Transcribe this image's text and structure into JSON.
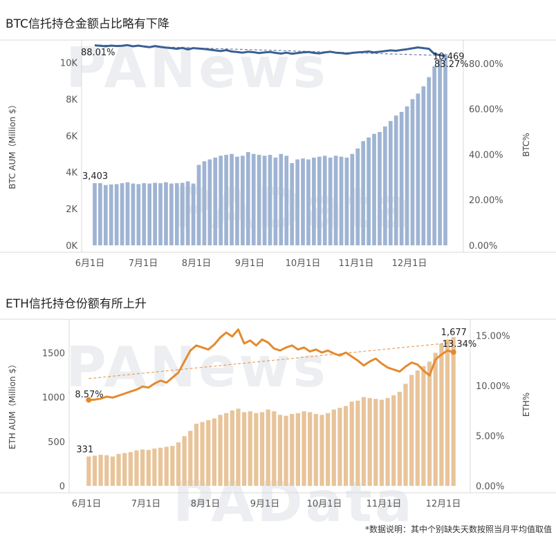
{
  "watermarks": [
    "PANews",
    "PAData",
    "PANews",
    "PAData"
  ],
  "footnote": "*数据说明：其中个别缺失天数按照当月平均值取值",
  "colors": {
    "btc_bar": "#9fb4d3",
    "btc_line": "#3b5f94",
    "eth_bar": "#e8c49a",
    "eth_line": "#e38a2e",
    "axis": "#999999",
    "grid": "#d9d9d9"
  },
  "chart_data": [
    {
      "id": "btc",
      "type": "bar+line",
      "title": "BTC信托持仓金额占比略有下降",
      "ylabel": "BTC AUM（Million $）",
      "y2label": "BTC%",
      "ylim": [
        0,
        11000
      ],
      "y2lim": [
        0,
        88.5
      ],
      "yticks": [
        {
          "v": 0,
          "t": "0K"
        },
        {
          "v": 2000,
          "t": "2K"
        },
        {
          "v": 4000,
          "t": "4K"
        },
        {
          "v": 6000,
          "t": "6K"
        },
        {
          "v": 8000,
          "t": "8K"
        },
        {
          "v": 10000,
          "t": "10K"
        }
      ],
      "y2ticks": [
        {
          "v": 0,
          "t": "0.00%"
        },
        {
          "v": 20,
          "t": "20.00%"
        },
        {
          "v": 40,
          "t": "40.00%"
        },
        {
          "v": 60,
          "t": "60.00%"
        },
        {
          "v": 80,
          "t": "80.00%"
        }
      ],
      "xticks": [
        "6月1日",
        "7月1日",
        "8月1日",
        "9月1日",
        "10月1日",
        "11月1日",
        "12月1日"
      ],
      "bars": [
        3403,
        3400,
        3300,
        3330,
        3350,
        3400,
        3450,
        3380,
        3350,
        3400,
        3380,
        3420,
        3400,
        3450,
        3380,
        3400,
        3420,
        3500,
        3380,
        4400,
        4600,
        4700,
        4800,
        4900,
        4950,
        5000,
        4850,
        4900,
        5100,
        5000,
        4950,
        4900,
        4950,
        4800,
        5000,
        4900,
        4500,
        4700,
        4750,
        4700,
        4800,
        4850,
        4900,
        4800,
        4900,
        4850,
        4800,
        5000,
        5300,
        5700,
        5900,
        6100,
        6200,
        6500,
        6800,
        7100,
        7300,
        7600,
        8000,
        8300,
        8700,
        9200,
        9800,
        10200,
        10469
      ],
      "pct": [
        88.01,
        87.8,
        87.6,
        87.9,
        87.7,
        87.8,
        88.1,
        87.6,
        87.9,
        87.5,
        87.2,
        87.7,
        87.3,
        87.0,
        86.8,
        86.5,
        86.9,
        86.2,
        86.8,
        86.6,
        86.4,
        86.1,
        85.8,
        85.5,
        85.9,
        85.3,
        85.1,
        84.8,
        85.2,
        85.0,
        84.6,
        84.9,
        85.1,
        84.7,
        84.4,
        84.8,
        84.3,
        84.6,
        84.9,
        85.1,
        84.7,
        84.5,
        84.9,
        85.2,
        84.8,
        84.6,
        84.3,
        84.7,
        84.9,
        85.1,
        85.3,
        84.9,
        85.2,
        85.5,
        85.8,
        85.6,
        86.0,
        86.3,
        86.7,
        87.1,
        86.8,
        86.5,
        84.2,
        83.7,
        83.27
      ],
      "trend": [
        88.2,
        83.5
      ],
      "labels": {
        "first_value": "3,403",
        "last_value": "10,469",
        "first_pct": "88.01%",
        "last_pct": "83.27%"
      }
    },
    {
      "id": "eth",
      "type": "bar+line",
      "title": "ETH信托持仓份额有所上升",
      "ylabel": "ETH AUM（Million $）",
      "y2label": "ETH%",
      "ylim": [
        0,
        1830
      ],
      "y2lim": [
        0,
        16.2
      ],
      "yticks": [
        {
          "v": 0,
          "t": "0"
        },
        {
          "v": 500,
          "t": "500"
        },
        {
          "v": 1000,
          "t": "1000"
        },
        {
          "v": 1500,
          "t": "1500"
        }
      ],
      "y2ticks": [
        {
          "v": 0,
          "t": "0.00%"
        },
        {
          "v": 5,
          "t": "5.00%"
        },
        {
          "v": 10,
          "t": "10.00%"
        },
        {
          "v": 15,
          "t": "15.00%"
        }
      ],
      "xticks": [
        "6月1日",
        "7月1日",
        "8月1日",
        "9月1日",
        "10月1日",
        "11月1日",
        "12月1日"
      ],
      "bars": [
        331,
        340,
        350,
        345,
        330,
        360,
        370,
        380,
        400,
        410,
        405,
        420,
        430,
        440,
        450,
        490,
        560,
        620,
        700,
        720,
        740,
        760,
        800,
        820,
        850,
        870,
        830,
        840,
        820,
        830,
        860,
        840,
        800,
        790,
        810,
        820,
        840,
        830,
        810,
        800,
        820,
        860,
        880,
        900,
        950,
        960,
        1000,
        990,
        980,
        970,
        990,
        1020,
        1060,
        1150,
        1250,
        1300,
        1350,
        1400,
        1500,
        1600,
        1650,
        1677
      ],
      "pct": [
        8.57,
        8.6,
        8.7,
        8.9,
        8.8,
        9.0,
        9.2,
        9.4,
        9.6,
        9.9,
        9.8,
        10.2,
        10.5,
        10.3,
        10.8,
        11.3,
        12.4,
        13.5,
        14.0,
        13.8,
        13.6,
        14.1,
        14.8,
        15.3,
        14.9,
        15.6,
        14.2,
        14.5,
        14.0,
        14.6,
        14.3,
        13.7,
        13.5,
        13.8,
        14.0,
        13.6,
        13.8,
        13.4,
        13.6,
        13.3,
        13.5,
        13.2,
        13.0,
        13.3,
        12.9,
        12.5,
        12.0,
        12.4,
        12.7,
        12.2,
        11.8,
        11.6,
        11.4,
        11.9,
        12.3,
        12.1,
        11.5,
        11.0,
        12.6,
        13.1,
        13.5,
        13.34
      ],
      "trend": [
        10.7,
        14.3
      ],
      "labels": {
        "first_value": "331",
        "last_value": "1,677",
        "first_pct": "8.57%",
        "last_pct": "13.34%"
      }
    }
  ]
}
